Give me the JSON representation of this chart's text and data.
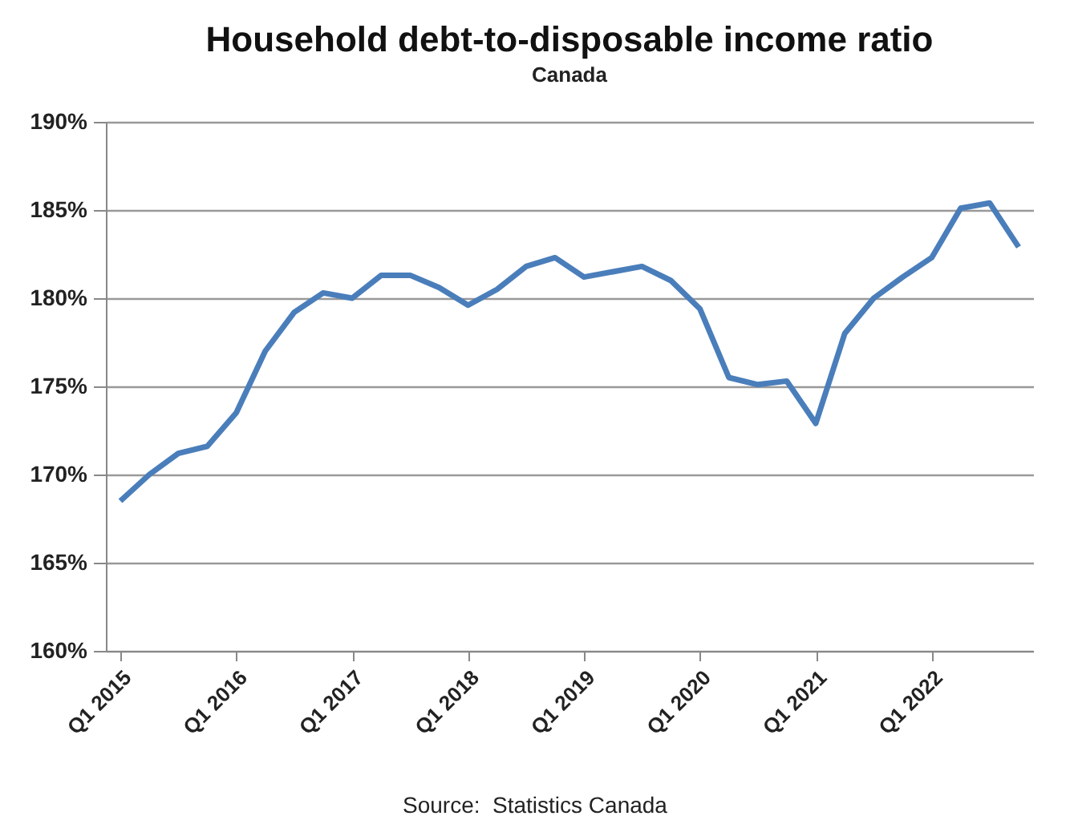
{
  "chart_data": {
    "type": "line",
    "title": "Household debt-to-disposable income ratio",
    "subtitle": "Canada",
    "categories": [
      "Q1 2015",
      null,
      null,
      null,
      "Q1 2016",
      null,
      null,
      null,
      "Q1 2017",
      null,
      null,
      null,
      "Q1 2018",
      null,
      null,
      null,
      "Q1 2019",
      null,
      null,
      null,
      "Q1 2020",
      null,
      null,
      null,
      "Q1 2021",
      null,
      null,
      null,
      "Q1 2022",
      null,
      null,
      null
    ],
    "series": [
      {
        "color": "#4a7ebb",
        "values": [
          168.5,
          170.0,
          171.2,
          171.6,
          173.5,
          177.0,
          179.2,
          180.3,
          180.0,
          181.3,
          181.3,
          180.6,
          179.6,
          180.5,
          181.8,
          182.3,
          181.2,
          181.5,
          181.8,
          181.0,
          179.4,
          175.5,
          175.1,
          175.3,
          172.9,
          178.0,
          180.0,
          181.2,
          182.3,
          185.1,
          185.4,
          182.9
        ]
      }
    ],
    "ylim": [
      160,
      190
    ],
    "yticks": [
      {
        "value": 160,
        "label": "160%"
      },
      {
        "value": 165,
        "label": "165%"
      },
      {
        "value": 170,
        "label": "170%"
      },
      {
        "value": 175,
        "label": "175%"
      },
      {
        "value": 180,
        "label": "180%"
      },
      {
        "value": 185,
        "label": "185%"
      },
      {
        "value": 190,
        "label": "190%"
      }
    ],
    "grid": "y",
    "line_style": "solid",
    "marker": "none",
    "annotations": [
      "Source:  Statistics Canada"
    ]
  }
}
